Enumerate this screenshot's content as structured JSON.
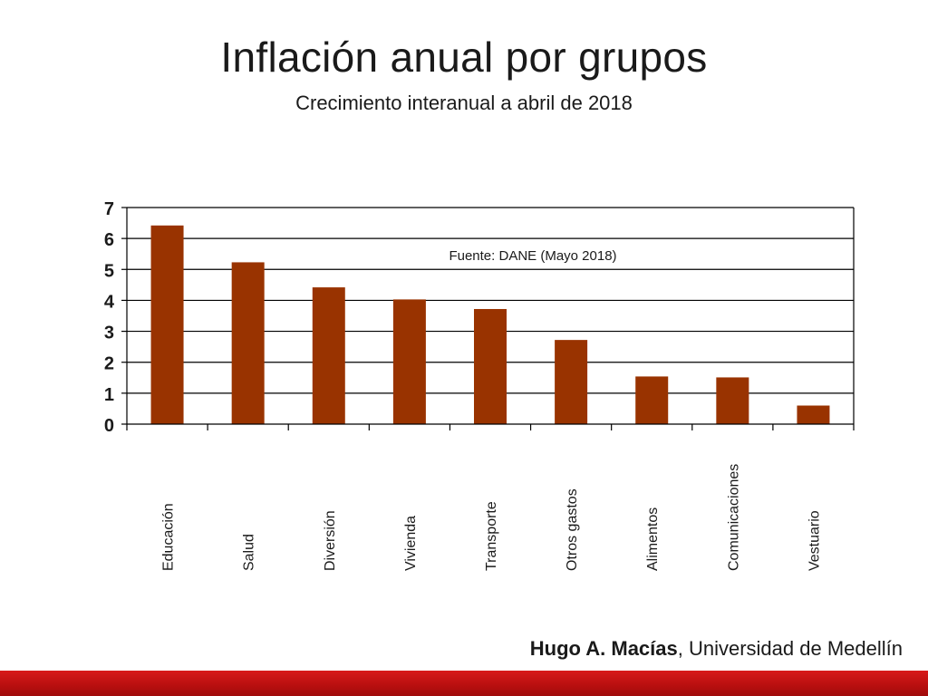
{
  "slide": {
    "title": "Inflación anual por grupos",
    "subtitle": "Crecimiento interanual a abril de 2018",
    "author_name": "Hugo A. Macías",
    "author_affiliation": ", Universidad de Medellín",
    "footer_color": "#c8161a"
  },
  "chart_data": {
    "type": "bar",
    "title": "",
    "xlabel": "",
    "ylabel": "",
    "annotation": "Fuente: DANE (Mayo 2018)",
    "categories": [
      "Educación",
      "Salud",
      "Diversión",
      "Vivienda",
      "Transporte",
      "Otros gastos",
      "Alimentos",
      "Comunicaciones",
      "Vestuario"
    ],
    "values": [
      6.42,
      5.23,
      4.42,
      4.03,
      3.72,
      2.72,
      1.54,
      1.51,
      0.6
    ],
    "ylim": [
      0,
      7
    ],
    "yticks": [
      "0",
      "1",
      "2",
      "3",
      "4",
      "5",
      "6",
      "7"
    ],
    "grid": true,
    "bar_color": "#993300"
  }
}
